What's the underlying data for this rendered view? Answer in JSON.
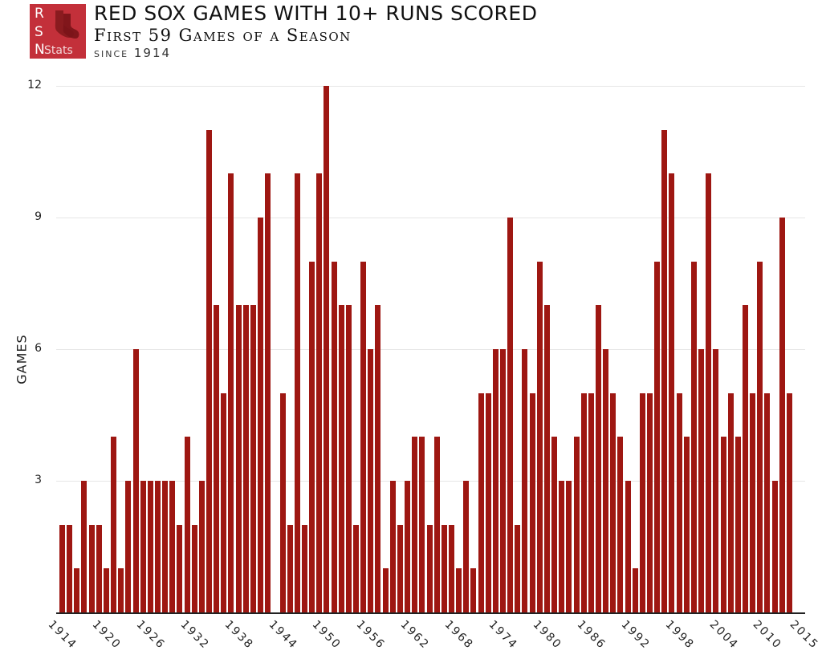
{
  "header": {
    "logo": {
      "letters": [
        "R",
        "S",
        "N"
      ],
      "suffix": "Stats",
      "icon": "red-sox-logo-icon",
      "color": "#c3303a"
    },
    "title": "RED SOX GAMES WITH 10+ RUNS SCORED",
    "subtitle": "First 59 Games of a Season",
    "since": "since 1914"
  },
  "colors": {
    "bar": "#9e1712",
    "grid": "#e6e6e6",
    "axis": "#222222"
  },
  "chart_data": {
    "type": "bar",
    "title": "RED SOX GAMES WITH 10+ RUNS SCORED",
    "subtitle": "First 59 Games of a Season, since 1914",
    "xlabel": "",
    "ylabel": "GAMES",
    "ylim": [
      0,
      12
    ],
    "yticks": [
      3,
      6,
      9,
      12
    ],
    "xticks": [
      "1914",
      "1920",
      "1926",
      "1932",
      "1938",
      "1944",
      "1950",
      "1956",
      "1962",
      "1968",
      "1974",
      "1980",
      "1986",
      "1992",
      "1998",
      "2004",
      "2010",
      "2015"
    ],
    "grid": true,
    "legend": null,
    "categories": [
      1914,
      1915,
      1916,
      1917,
      1918,
      1919,
      1920,
      1921,
      1922,
      1923,
      1924,
      1925,
      1926,
      1927,
      1928,
      1929,
      1930,
      1931,
      1932,
      1933,
      1934,
      1935,
      1936,
      1937,
      1938,
      1939,
      1940,
      1941,
      1942,
      1943,
      1944,
      1945,
      1946,
      1947,
      1948,
      1949,
      1950,
      1951,
      1952,
      1953,
      1954,
      1955,
      1956,
      1957,
      1958,
      1959,
      1960,
      1961,
      1962,
      1963,
      1964,
      1965,
      1966,
      1967,
      1968,
      1969,
      1970,
      1971,
      1972,
      1973,
      1974,
      1975,
      1976,
      1977,
      1978,
      1979,
      1980,
      1981,
      1982,
      1983,
      1984,
      1985,
      1986,
      1987,
      1988,
      1989,
      1990,
      1991,
      1992,
      1993,
      1994,
      1995,
      1996,
      1997,
      1998,
      1999,
      2000,
      2001,
      2002,
      2003,
      2004,
      2005,
      2006,
      2007,
      2008,
      2009,
      2010,
      2011,
      2012,
      2013
    ],
    "values": [
      2,
      2,
      1,
      3,
      2,
      2,
      1,
      4,
      1,
      3,
      6,
      3,
      3,
      3,
      3,
      3,
      2,
      4,
      2,
      3,
      11,
      7,
      5,
      10,
      7,
      7,
      7,
      9,
      10,
      0,
      5,
      2,
      10,
      2,
      8,
      10,
      12,
      8,
      7,
      7,
      2,
      8,
      6,
      7,
      1,
      3,
      2,
      3,
      4,
      4,
      2,
      4,
      2,
      2,
      1,
      3,
      1,
      5,
      5,
      6,
      6,
      9,
      2,
      6,
      5,
      8,
      7,
      4,
      3,
      3,
      4,
      5,
      5,
      7,
      6,
      5,
      4,
      3,
      1,
      5,
      5,
      8,
      11,
      10,
      5,
      4,
      8,
      6,
      10,
      6,
      4,
      5,
      4,
      7,
      5,
      8,
      5,
      3,
      9,
      5
    ]
  }
}
